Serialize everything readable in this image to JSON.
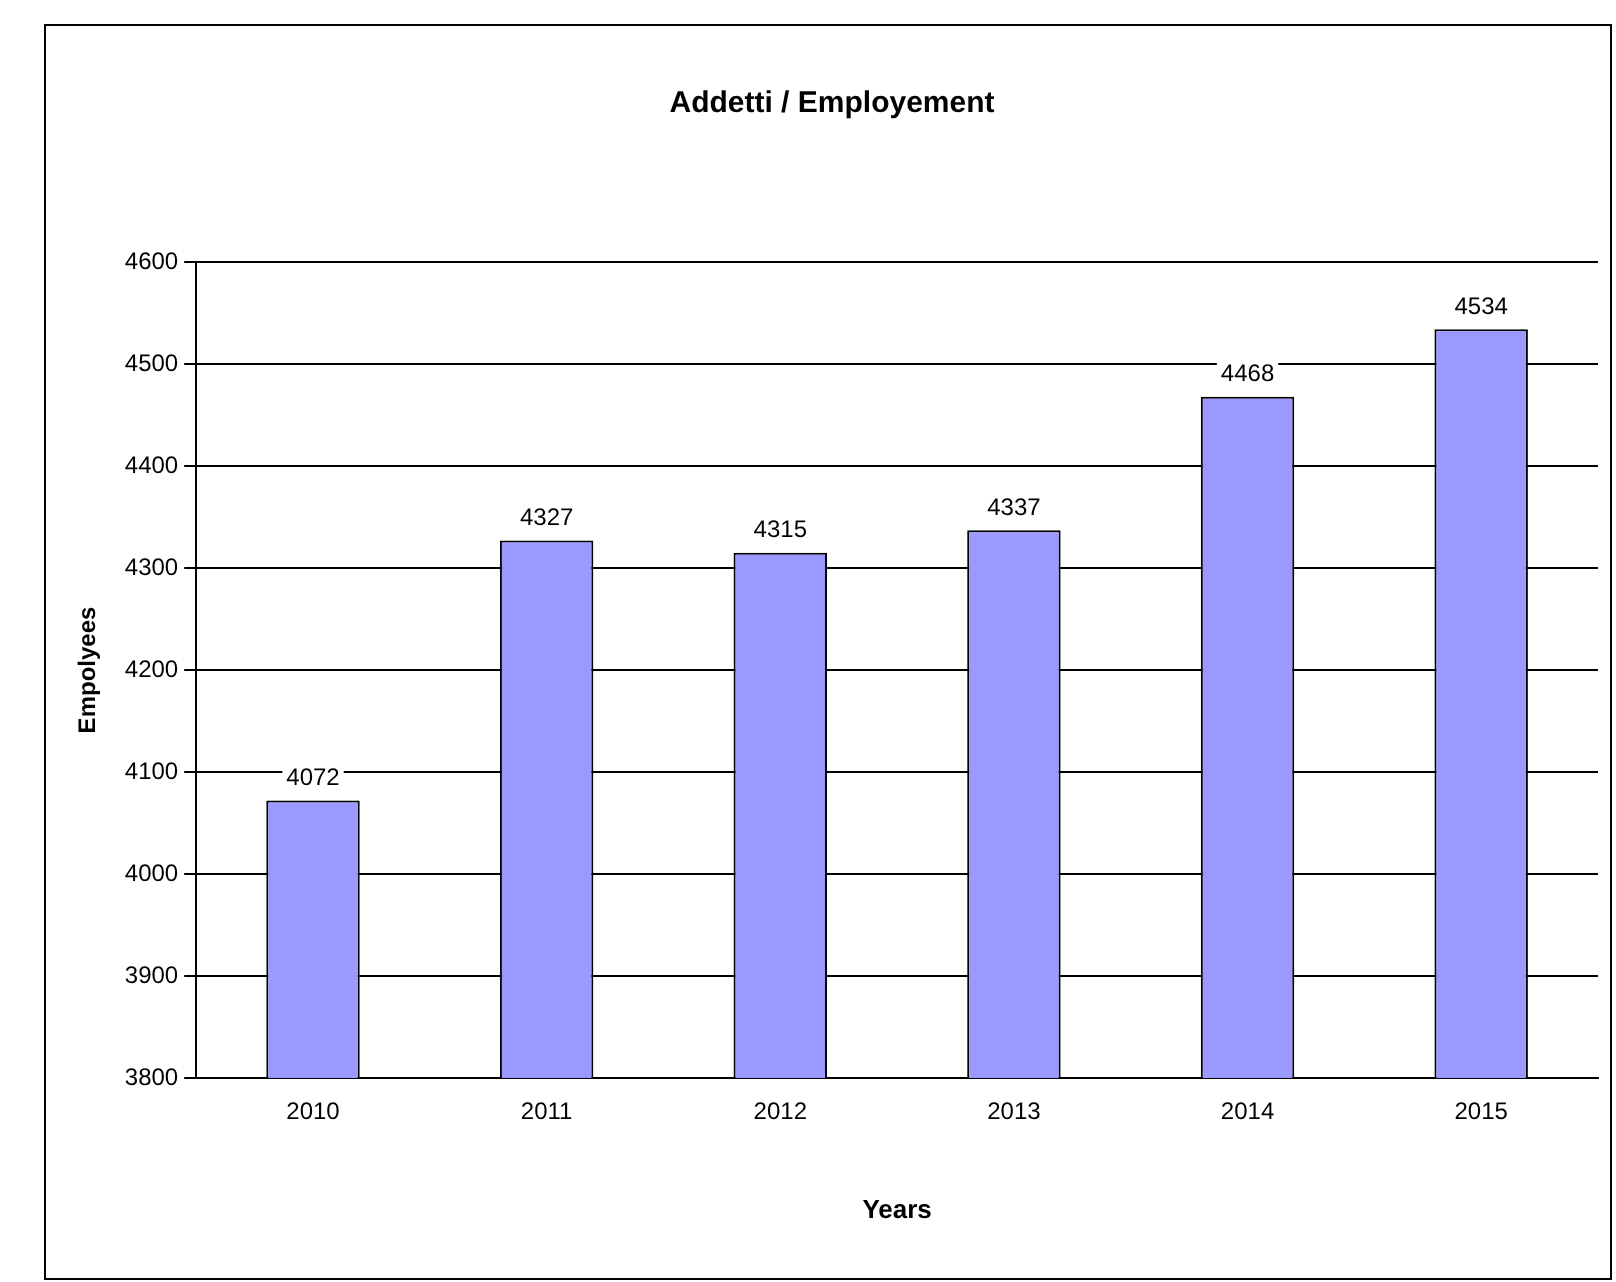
{
  "chart_data": {
    "type": "bar",
    "title": "Addetti / Employement",
    "xlabel": "Years",
    "ylabel": "Empolyees",
    "categories": [
      "2010",
      "2011",
      "2012",
      "2013",
      "2014",
      "2015"
    ],
    "series": [
      {
        "color": "#9999ff",
        "values": [
          4072,
          4327,
          4315,
          4337,
          4468,
          4534
        ]
      }
    ],
    "ylim": [
      3800,
      4600
    ],
    "yticks": [
      3800,
      3900,
      4000,
      4100,
      4200,
      4300,
      4400,
      4500,
      4600
    ],
    "grid": "y",
    "data_labels": true,
    "legend": false
  }
}
